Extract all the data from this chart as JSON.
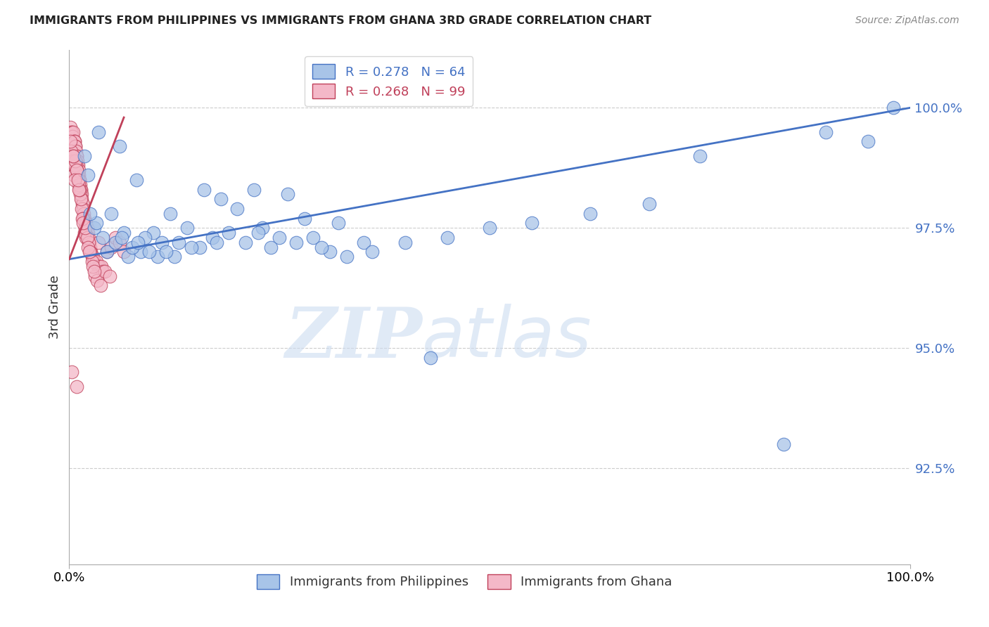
{
  "title": "IMMIGRANTS FROM PHILIPPINES VS IMMIGRANTS FROM GHANA 3RD GRADE CORRELATION CHART",
  "source": "Source: ZipAtlas.com",
  "ylabel": "3rd Grade",
  "xlim": [
    0.0,
    100.0
  ],
  "ylim": [
    90.5,
    101.2
  ],
  "blue_color": "#a8c4e8",
  "blue_line_color": "#4472c4",
  "pink_color": "#f4b8c8",
  "pink_line_color": "#c0405a",
  "legend_blue_R": "R = 0.278",
  "legend_blue_N": "N = 64",
  "legend_pink_R": "R = 0.268",
  "legend_pink_N": "N = 99",
  "watermark_zip": "ZIP",
  "watermark_atlas": "atlas",
  "blue_line_x0": 0.0,
  "blue_line_y0": 96.85,
  "blue_line_x1": 100.0,
  "blue_line_y1": 100.0,
  "pink_line_x0": 0.0,
  "pink_line_y0": 96.85,
  "pink_line_x1": 6.5,
  "pink_line_y1": 99.8,
  "blue_x": [
    3.5,
    6.0,
    1.8,
    2.2,
    8.0,
    16.0,
    18.0,
    20.0,
    22.0,
    26.0,
    12.0,
    14.0,
    10.0,
    28.0,
    32.0,
    4.0,
    6.5,
    9.0,
    11.0,
    13.0,
    15.5,
    19.0,
    23.0,
    25.0,
    29.0,
    35.0,
    4.5,
    7.0,
    8.5,
    10.5,
    12.5,
    17.0,
    21.0,
    24.0,
    27.0,
    31.0,
    33.0,
    3.0,
    5.5,
    7.5,
    9.5,
    11.5,
    3.2,
    6.2,
    8.2,
    5.0,
    22.5,
    40.0,
    2.5,
    14.5,
    17.5,
    50.0,
    62.0,
    69.0,
    98.0,
    45.0,
    30.0,
    55.0,
    75.0,
    36.0,
    90.0,
    95.0,
    43.0,
    85.0
  ],
  "blue_y": [
    99.5,
    99.2,
    99.0,
    98.6,
    98.5,
    98.3,
    98.1,
    97.9,
    98.3,
    98.2,
    97.8,
    97.5,
    97.4,
    97.7,
    97.6,
    97.3,
    97.4,
    97.3,
    97.2,
    97.2,
    97.1,
    97.4,
    97.5,
    97.3,
    97.3,
    97.2,
    97.0,
    96.9,
    97.0,
    96.9,
    96.9,
    97.3,
    97.2,
    97.1,
    97.2,
    97.0,
    96.9,
    97.5,
    97.2,
    97.1,
    97.0,
    97.0,
    97.6,
    97.3,
    97.2,
    97.8,
    97.4,
    97.2,
    97.8,
    97.1,
    97.2,
    97.5,
    97.8,
    98.0,
    100.0,
    97.3,
    97.1,
    97.6,
    99.0,
    97.0,
    99.5,
    99.3,
    94.8,
    93.0
  ],
  "pink_x": [
    0.1,
    0.2,
    0.3,
    0.4,
    0.5,
    0.55,
    0.6,
    0.65,
    0.7,
    0.75,
    0.8,
    0.85,
    0.9,
    0.95,
    1.0,
    1.05,
    1.1,
    1.15,
    1.2,
    1.25,
    1.3,
    1.35,
    1.4,
    1.45,
    1.5,
    1.55,
    1.6,
    1.65,
    1.7,
    1.75,
    1.8,
    1.85,
    1.9,
    1.95,
    2.0,
    2.1,
    2.2,
    2.3,
    2.4,
    2.5,
    2.6,
    2.7,
    2.8,
    2.9,
    3.0,
    3.2,
    3.4,
    3.5,
    3.6,
    3.8,
    4.0,
    4.5,
    5.0,
    5.5,
    6.0,
    6.5,
    0.35,
    0.45,
    0.55,
    0.25,
    0.15,
    0.8,
    1.3,
    1.0,
    0.4,
    1.8,
    2.3,
    0.6,
    1.5,
    1.1,
    2.0,
    0.9,
    1.6,
    2.5,
    3.1,
    0.7,
    1.4,
    2.1,
    0.5,
    1.2,
    1.9,
    2.7,
    3.3,
    0.85,
    1.55,
    2.25,
    4.2,
    0.6,
    1.15,
    2.8,
    3.7,
    0.45,
    1.05,
    1.65,
    2.35,
    3.0,
    4.8,
    0.3,
    0.9
  ],
  "pink_y": [
    99.6,
    99.5,
    99.5,
    99.4,
    99.5,
    99.3,
    99.3,
    99.3,
    99.2,
    99.2,
    99.1,
    99.0,
    99.0,
    98.9,
    98.8,
    98.8,
    98.7,
    98.6,
    98.5,
    98.5,
    98.4,
    98.3,
    98.3,
    98.2,
    98.1,
    98.0,
    98.0,
    97.9,
    97.8,
    97.7,
    97.7,
    97.6,
    97.5,
    97.4,
    97.3,
    97.5,
    97.4,
    97.3,
    97.2,
    97.1,
    97.0,
    96.9,
    96.9,
    96.8,
    96.8,
    96.8,
    96.7,
    97.2,
    96.7,
    96.7,
    96.6,
    97.0,
    97.1,
    97.3,
    97.2,
    97.0,
    99.0,
    98.8,
    98.6,
    99.1,
    99.3,
    98.8,
    98.2,
    98.6,
    98.9,
    97.4,
    97.2,
    98.8,
    97.9,
    98.4,
    97.6,
    98.7,
    97.7,
    97.0,
    96.5,
    98.9,
    98.1,
    97.3,
    99.0,
    98.3,
    97.5,
    96.8,
    96.4,
    98.7,
    97.7,
    97.1,
    96.6,
    98.5,
    98.3,
    96.7,
    96.3,
    99.0,
    98.5,
    97.6,
    97.0,
    96.6,
    96.5,
    94.5,
    94.2
  ]
}
